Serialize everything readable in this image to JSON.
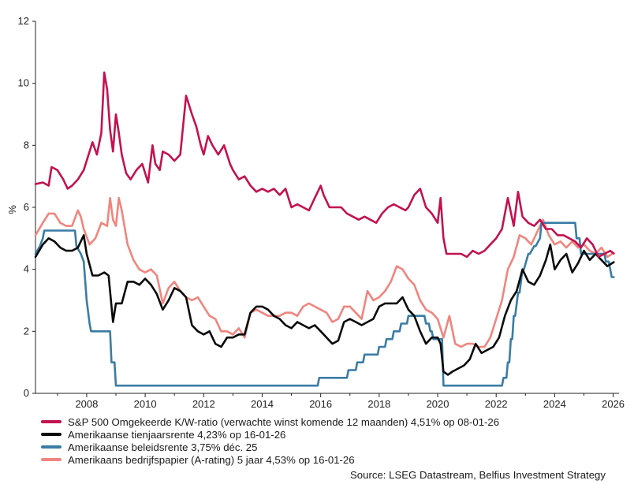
{
  "chart_data": {
    "type": "line",
    "title": "",
    "ylabel": "%",
    "xlabel": "",
    "ylim": [
      0,
      12
    ],
    "xlim": [
      2006.25,
      2026.2
    ],
    "yticks": [
      "0",
      "2",
      "4",
      "6",
      "8",
      "10",
      "12"
    ],
    "xticks": [
      "2008",
      "2010",
      "2012",
      "2014",
      "2016",
      "2018",
      "2020",
      "2022",
      "2024",
      "2026"
    ],
    "series": [
      {
        "name": "S&P 500 Omgekeerde K/W-ratio (verwachte winst komende 12 maanden) 4,51% op 08-01-26",
        "color": "#c2124f",
        "x": [
          2006.25,
          2006.5,
          2006.7,
          2006.8,
          2007.0,
          2007.2,
          2007.35,
          2007.5,
          2007.7,
          2007.9,
          2008.0,
          2008.2,
          2008.35,
          2008.5,
          2008.6,
          2008.7,
          2008.8,
          2008.9,
          2009.0,
          2009.1,
          2009.2,
          2009.35,
          2009.5,
          2009.7,
          2009.9,
          2010.1,
          2010.25,
          2010.35,
          2010.5,
          2010.6,
          2010.8,
          2011.0,
          2011.2,
          2011.4,
          2011.6,
          2011.75,
          2011.9,
          2012.0,
          2012.15,
          2012.3,
          2012.5,
          2012.7,
          2012.9,
          2013.0,
          2013.2,
          2013.4,
          2013.6,
          2013.8,
          2014.0,
          2014.2,
          2014.4,
          2014.6,
          2014.8,
          2015.0,
          2015.2,
          2015.4,
          2015.6,
          2015.8,
          2016.0,
          2016.1,
          2016.3,
          2016.5,
          2016.7,
          2016.9,
          2017.1,
          2017.3,
          2017.5,
          2017.7,
          2017.9,
          2018.1,
          2018.3,
          2018.5,
          2018.7,
          2018.9,
          2019.0,
          2019.2,
          2019.4,
          2019.6,
          2019.8,
          2020.0,
          2020.1,
          2020.2,
          2020.3,
          2020.5,
          2020.8,
          2021.0,
          2021.2,
          2021.4,
          2021.6,
          2021.8,
          2022.0,
          2022.2,
          2022.4,
          2022.6,
          2022.75,
          2022.9,
          2023.1,
          2023.3,
          2023.5,
          2023.7,
          2023.9,
          2024.1,
          2024.3,
          2024.5,
          2024.7,
          2024.9,
          2025.1,
          2025.3,
          2025.5,
          2025.7,
          2025.9,
          2026.02
        ],
        "values": [
          6.75,
          6.8,
          6.7,
          7.3,
          7.2,
          6.9,
          6.6,
          6.7,
          6.9,
          7.2,
          7.5,
          8.1,
          7.7,
          8.4,
          10.35,
          9.8,
          8.5,
          7.8,
          9.0,
          8.4,
          7.7,
          7.1,
          6.9,
          7.2,
          7.4,
          6.8,
          8.0,
          7.4,
          7.2,
          7.8,
          7.7,
          7.5,
          7.7,
          9.6,
          9.0,
          8.6,
          8.0,
          7.7,
          8.3,
          8.0,
          7.7,
          8.0,
          7.4,
          7.2,
          6.9,
          7.0,
          6.7,
          6.5,
          6.6,
          6.5,
          6.6,
          6.4,
          6.6,
          6.0,
          6.1,
          6.0,
          5.9,
          6.3,
          6.7,
          6.4,
          6.0,
          6.0,
          6.0,
          5.8,
          5.7,
          5.6,
          5.7,
          5.6,
          5.5,
          5.8,
          6.0,
          6.1,
          6.0,
          5.9,
          6.0,
          6.4,
          6.6,
          6.0,
          5.8,
          5.5,
          6.3,
          5.0,
          4.5,
          4.5,
          4.5,
          4.4,
          4.6,
          4.5,
          4.6,
          4.8,
          5.0,
          5.3,
          6.3,
          5.4,
          6.5,
          5.7,
          5.5,
          5.4,
          5.6,
          5.3,
          5.3,
          5.1,
          5.1,
          5.0,
          4.9,
          4.7,
          5.0,
          4.8,
          4.4,
          4.5,
          4.6,
          4.51
        ]
      },
      {
        "name": "Amerikaanse tienjaarsrente 4,23% op 16-01-26",
        "color": "#0a0a0a",
        "x": [
          2006.25,
          2006.5,
          2006.7,
          2006.9,
          2007.1,
          2007.3,
          2007.5,
          2007.7,
          2007.9,
          2008.0,
          2008.2,
          2008.4,
          2008.6,
          2008.75,
          2008.9,
          2009.0,
          2009.2,
          2009.4,
          2009.6,
          2009.8,
          2010.0,
          2010.2,
          2010.4,
          2010.6,
          2010.8,
          2011.0,
          2011.2,
          2011.4,
          2011.6,
          2011.8,
          2012.0,
          2012.2,
          2012.4,
          2012.6,
          2012.8,
          2013.0,
          2013.2,
          2013.4,
          2013.6,
          2013.8,
          2014.0,
          2014.2,
          2014.4,
          2014.6,
          2014.8,
          2015.0,
          2015.2,
          2015.4,
          2015.6,
          2015.8,
          2016.0,
          2016.2,
          2016.4,
          2016.6,
          2016.8,
          2017.0,
          2017.2,
          2017.4,
          2017.6,
          2017.8,
          2018.0,
          2018.2,
          2018.4,
          2018.6,
          2018.8,
          2019.0,
          2019.2,
          2019.4,
          2019.6,
          2019.8,
          2020.0,
          2020.1,
          2020.2,
          2020.35,
          2020.5,
          2020.7,
          2020.9,
          2021.1,
          2021.3,
          2021.5,
          2021.7,
          2021.9,
          2022.1,
          2022.3,
          2022.5,
          2022.7,
          2022.9,
          2023.1,
          2023.3,
          2023.5,
          2023.7,
          2023.85,
          2024.0,
          2024.2,
          2024.4,
          2024.6,
          2024.8,
          2025.0,
          2025.2,
          2025.4,
          2025.6,
          2025.8,
          2026.02
        ],
        "values": [
          4.4,
          4.8,
          5.0,
          4.9,
          4.7,
          4.6,
          4.6,
          4.7,
          5.1,
          4.5,
          3.8,
          3.8,
          3.9,
          3.8,
          2.3,
          2.9,
          2.9,
          3.6,
          3.6,
          3.5,
          3.7,
          3.5,
          3.2,
          2.7,
          3.0,
          3.4,
          3.3,
          3.1,
          2.2,
          2.0,
          1.9,
          2.0,
          1.6,
          1.5,
          1.8,
          1.8,
          1.9,
          1.9,
          2.6,
          2.8,
          2.8,
          2.7,
          2.5,
          2.4,
          2.2,
          2.1,
          2.3,
          2.2,
          2.1,
          2.2,
          2.0,
          1.8,
          1.6,
          1.7,
          2.3,
          2.4,
          2.3,
          2.2,
          2.3,
          2.4,
          2.8,
          2.9,
          2.9,
          2.9,
          3.1,
          2.7,
          2.5,
          2.0,
          1.6,
          1.8,
          1.8,
          1.6,
          0.7,
          0.6,
          0.7,
          0.8,
          0.9,
          1.1,
          1.6,
          1.3,
          1.4,
          1.5,
          1.8,
          2.5,
          3.0,
          3.3,
          4.0,
          3.6,
          3.5,
          3.8,
          4.3,
          4.8,
          4.0,
          4.3,
          4.5,
          3.9,
          4.2,
          4.6,
          4.3,
          4.5,
          4.3,
          4.1,
          4.23
        ]
      },
      {
        "name": "Amerikaanse beleidsrente 3,75% déc. 25",
        "color": "#3a7ca5",
        "x": [
          2006.25,
          2006.4,
          2006.5,
          2006.55,
          2007.6,
          2007.65,
          2007.8,
          2007.9,
          2008.0,
          2008.1,
          2008.15,
          2008.25,
          2008.3,
          2008.8,
          2008.85,
          2008.95,
          2009.0,
          2015.9,
          2015.95,
          2016.9,
          2016.95,
          2017.2,
          2017.25,
          2017.45,
          2017.5,
          2017.95,
          2018.0,
          2018.2,
          2018.25,
          2018.45,
          2018.5,
          2018.7,
          2018.75,
          2018.95,
          2019.0,
          2019.55,
          2019.6,
          2019.7,
          2019.75,
          2019.8,
          2019.85,
          2020.15,
          2020.2,
          2022.2,
          2022.25,
          2022.35,
          2022.4,
          2022.45,
          2022.5,
          2022.55,
          2022.6,
          2022.65,
          2022.75,
          2022.8,
          2022.9,
          2022.95,
          2023.1,
          2023.15,
          2023.3,
          2023.35,
          2023.5,
          2023.55,
          2024.7,
          2024.75,
          2024.85,
          2024.9,
          2025.7,
          2025.75,
          2025.85,
          2025.9,
          2025.95,
          2026.02
        ],
        "values": [
          4.5,
          4.75,
          5.0,
          5.25,
          5.25,
          4.75,
          4.5,
          4.25,
          3.0,
          2.25,
          2.0,
          2.0,
          2.0,
          2.0,
          1.0,
          1.0,
          0.25,
          0.25,
          0.5,
          0.5,
          0.75,
          0.75,
          1.0,
          1.0,
          1.25,
          1.25,
          1.5,
          1.5,
          1.75,
          1.75,
          2.0,
          2.0,
          2.25,
          2.25,
          2.5,
          2.5,
          2.25,
          2.25,
          2.0,
          2.0,
          1.75,
          1.75,
          0.25,
          0.25,
          0.5,
          0.5,
          1.0,
          1.0,
          1.75,
          1.75,
          2.5,
          2.5,
          3.25,
          3.25,
          4.0,
          4.0,
          4.5,
          4.5,
          4.75,
          4.75,
          5.0,
          5.5,
          5.5,
          5.0,
          5.0,
          4.5,
          4.5,
          4.25,
          4.25,
          4.0,
          3.75,
          3.75
        ]
      },
      {
        "name": "Amerikaans bedrijfspapier (A-rating) 5 jaar 4,53% op 16-01-26",
        "color": "#f0857f",
        "x": [
          2006.25,
          2006.5,
          2006.7,
          2006.9,
          2007.1,
          2007.3,
          2007.5,
          2007.7,
          2007.8,
          2007.9,
          2008.1,
          2008.3,
          2008.5,
          2008.7,
          2008.8,
          2008.9,
          2009.0,
          2009.1,
          2009.2,
          2009.4,
          2009.6,
          2009.8,
          2010.0,
          2010.2,
          2010.4,
          2010.6,
          2010.8,
          2011.0,
          2011.2,
          2011.4,
          2011.6,
          2011.8,
          2012.0,
          2012.2,
          2012.4,
          2012.6,
          2012.8,
          2013.0,
          2013.2,
          2013.4,
          2013.6,
          2013.8,
          2014.0,
          2014.2,
          2014.4,
          2014.6,
          2014.8,
          2015.0,
          2015.2,
          2015.4,
          2015.6,
          2015.8,
          2016.0,
          2016.2,
          2016.4,
          2016.6,
          2016.8,
          2017.0,
          2017.2,
          2017.4,
          2017.6,
          2017.8,
          2018.0,
          2018.2,
          2018.4,
          2018.6,
          2018.8,
          2019.0,
          2019.2,
          2019.4,
          2019.6,
          2019.8,
          2020.0,
          2020.2,
          2020.4,
          2020.6,
          2020.8,
          2021.0,
          2021.2,
          2021.4,
          2021.6,
          2021.8,
          2022.0,
          2022.2,
          2022.4,
          2022.6,
          2022.8,
          2023.0,
          2023.2,
          2023.4,
          2023.6,
          2023.8,
          2024.0,
          2024.2,
          2024.4,
          2024.6,
          2024.8,
          2025.0,
          2025.2,
          2025.4,
          2025.6,
          2025.8,
          2026.02
        ],
        "values": [
          5.1,
          5.5,
          5.8,
          5.8,
          5.5,
          5.4,
          5.4,
          5.9,
          5.7,
          5.3,
          4.8,
          5.0,
          5.5,
          5.4,
          6.3,
          5.6,
          5.4,
          6.3,
          5.9,
          4.8,
          4.3,
          4.0,
          3.9,
          4.0,
          3.8,
          2.9,
          3.4,
          3.6,
          3.3,
          3.1,
          3.0,
          3.1,
          2.8,
          2.5,
          2.4,
          2.0,
          2.0,
          1.9,
          2.1,
          1.8,
          2.6,
          2.7,
          2.6,
          2.5,
          2.5,
          2.5,
          2.6,
          2.6,
          2.5,
          2.8,
          2.9,
          2.8,
          2.7,
          2.6,
          2.3,
          2.4,
          2.8,
          2.8,
          2.6,
          2.4,
          3.3,
          3.0,
          3.1,
          3.3,
          3.6,
          4.1,
          4.0,
          3.7,
          3.5,
          3.0,
          2.7,
          2.6,
          2.4,
          1.8,
          2.5,
          1.6,
          1.5,
          1.6,
          1.6,
          1.5,
          1.5,
          1.8,
          2.4,
          3.0,
          4.0,
          4.4,
          5.1,
          5.0,
          4.8,
          5.2,
          5.6,
          5.1,
          4.8,
          4.9,
          4.7,
          4.9,
          4.7,
          4.8,
          4.6,
          4.5,
          4.7,
          4.4,
          4.53
        ]
      }
    ]
  },
  "source": "Source: LSEG Datastream, Belfius Investment Strategy"
}
